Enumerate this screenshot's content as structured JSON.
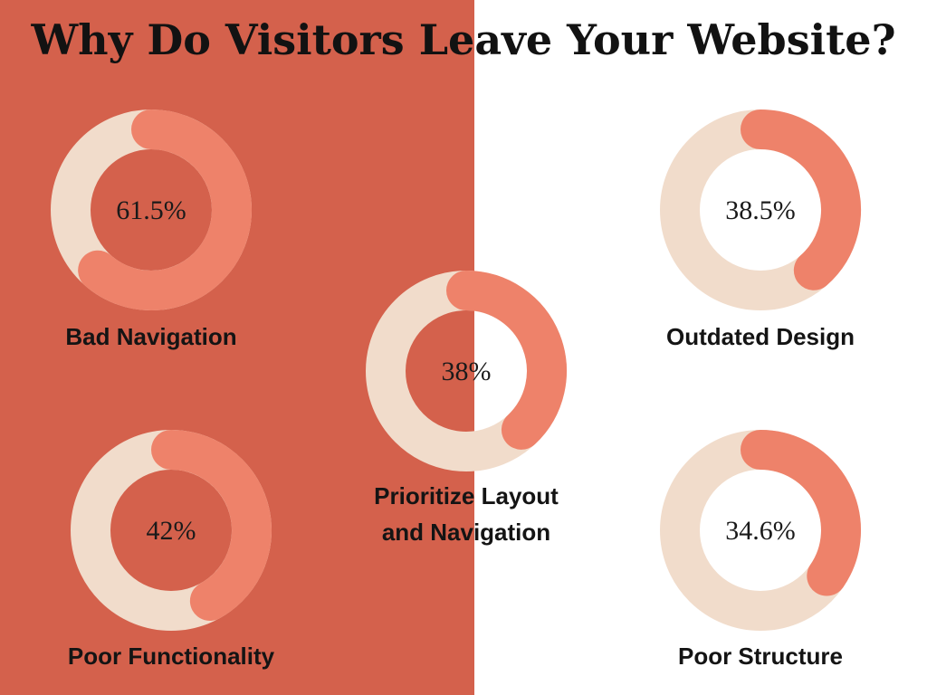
{
  "title": "Why Do Visitors Leave Your Website?",
  "chart_data": [
    {
      "type": "donut",
      "title": "Bad Navigation",
      "values": [
        61.5
      ],
      "value_labels": [
        "61.5%"
      ],
      "ylim": [
        0,
        100
      ],
      "color": "#ee826a",
      "track_color": "#f1dccb"
    },
    {
      "type": "donut",
      "title": "Outdated Design",
      "values": [
        38.5
      ],
      "value_labels": [
        "38.5%"
      ],
      "ylim": [
        0,
        100
      ],
      "color": "#ee826a",
      "track_color": "#f1dccb"
    },
    {
      "type": "donut",
      "title": "Prioritize Layout and Navigation",
      "values": [
        38
      ],
      "value_labels": [
        "38%"
      ],
      "ylim": [
        0,
        100
      ],
      "color": "#ee826a",
      "track_color": "#f1dccb"
    },
    {
      "type": "donut",
      "title": "Poor Functionality",
      "values": [
        42
      ],
      "value_labels": [
        "42%"
      ],
      "ylim": [
        0,
        100
      ],
      "color": "#ee826a",
      "track_color": "#f1dccb"
    },
    {
      "type": "donut",
      "title": "Poor Structure",
      "values": [
        34.6
      ],
      "value_labels": [
        "34.6%"
      ],
      "ylim": [
        0,
        100
      ],
      "color": "#ee826a",
      "track_color": "#f1dccb"
    }
  ]
}
